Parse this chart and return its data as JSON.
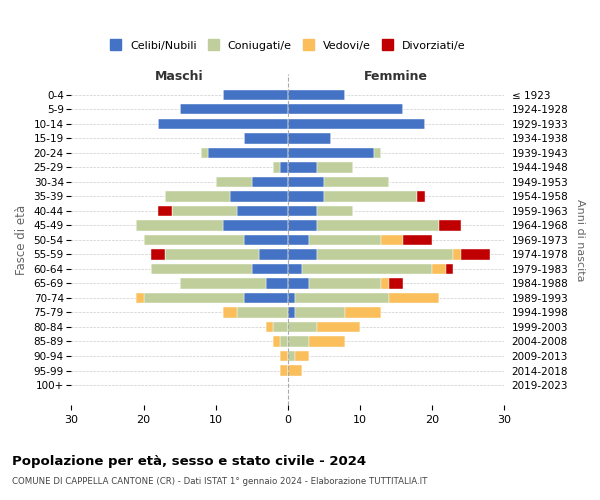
{
  "age_groups": [
    "0-4",
    "5-9",
    "10-14",
    "15-19",
    "20-24",
    "25-29",
    "30-34",
    "35-39",
    "40-44",
    "45-49",
    "50-54",
    "55-59",
    "60-64",
    "65-69",
    "70-74",
    "75-79",
    "80-84",
    "85-89",
    "90-94",
    "95-99",
    "100+"
  ],
  "birth_years": [
    "2019-2023",
    "2014-2018",
    "2009-2013",
    "2004-2008",
    "1999-2003",
    "1994-1998",
    "1989-1993",
    "1984-1988",
    "1979-1983",
    "1974-1978",
    "1969-1973",
    "1964-1968",
    "1959-1963",
    "1954-1958",
    "1949-1953",
    "1944-1948",
    "1939-1943",
    "1934-1938",
    "1929-1933",
    "1924-1928",
    "≤ 1923"
  ],
  "colors": {
    "celibi": "#4472C4",
    "coniugati": "#BFCE9B",
    "vedovi": "#FABE5A",
    "divorziati": "#C00000"
  },
  "males": {
    "celibi": [
      9,
      15,
      18,
      6,
      11,
      1,
      5,
      8,
      7,
      9,
      6,
      4,
      5,
      3,
      6,
      0,
      0,
      0,
      0,
      0,
      0
    ],
    "coniugati": [
      0,
      0,
      0,
      0,
      1,
      1,
      5,
      9,
      9,
      12,
      14,
      13,
      14,
      12,
      14,
      7,
      2,
      1,
      0,
      0,
      0
    ],
    "vedovi": [
      0,
      0,
      0,
      0,
      0,
      0,
      0,
      0,
      0,
      0,
      0,
      0,
      0,
      0,
      1,
      2,
      1,
      1,
      1,
      1,
      0
    ],
    "divorziati": [
      0,
      0,
      0,
      0,
      0,
      0,
      0,
      0,
      2,
      0,
      0,
      2,
      0,
      0,
      0,
      0,
      0,
      0,
      0,
      0,
      0
    ]
  },
  "females": {
    "celibi": [
      8,
      16,
      19,
      6,
      12,
      4,
      5,
      5,
      4,
      4,
      3,
      4,
      2,
      3,
      1,
      1,
      0,
      0,
      0,
      0,
      0
    ],
    "coniugati": [
      0,
      0,
      0,
      0,
      1,
      5,
      9,
      13,
      5,
      17,
      10,
      19,
      18,
      10,
      13,
      7,
      4,
      3,
      1,
      0,
      0
    ],
    "vedovi": [
      0,
      0,
      0,
      0,
      0,
      0,
      0,
      0,
      0,
      0,
      3,
      1,
      2,
      1,
      7,
      5,
      6,
      5,
      2,
      2,
      0
    ],
    "divorziati": [
      0,
      0,
      0,
      0,
      0,
      0,
      0,
      1,
      0,
      3,
      4,
      4,
      1,
      2,
      0,
      0,
      0,
      0,
      0,
      0,
      0
    ]
  },
  "xlim": 30,
  "title": "Popolazione per età, sesso e stato civile - 2024",
  "subtitle": "COMUNE DI CAPPELLA CANTONE (CR) - Dati ISTAT 1° gennaio 2024 - Elaborazione TUTTITALIA.IT",
  "ylabel": "Fasce di età",
  "ylabel_right": "Anni di nascita",
  "xlabel_left": "Maschi",
  "xlabel_right": "Femmine",
  "legend_labels": [
    "Celibi/Nubili",
    "Coniugati/e",
    "Vedovi/e",
    "Divorziati/e"
  ]
}
